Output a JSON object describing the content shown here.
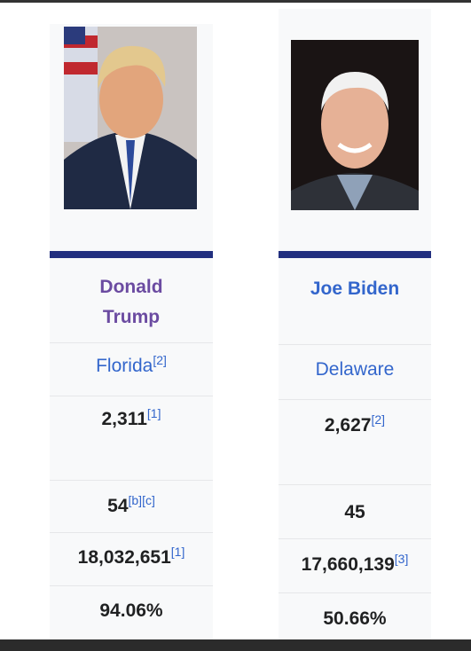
{
  "candidates": [
    {
      "name": "Donald Trump",
      "home_state": "Florida",
      "home_state_refs": "[2]",
      "delegates": "2,311",
      "delegates_refs": "[1]",
      "contests_won": "54",
      "contests_won_refs": "[b][c]",
      "popular_vote": "18,032,651",
      "popular_vote_refs": "[1]",
      "percentage": "94.06%"
    },
    {
      "name": "Joe Biden",
      "home_state": "Delaware",
      "delegates": "2,627",
      "delegates_refs": "[2]",
      "contests_won": "45",
      "popular_vote": "17,660,139",
      "popular_vote_refs": "[3]",
      "percentage": "50.66%"
    }
  ]
}
